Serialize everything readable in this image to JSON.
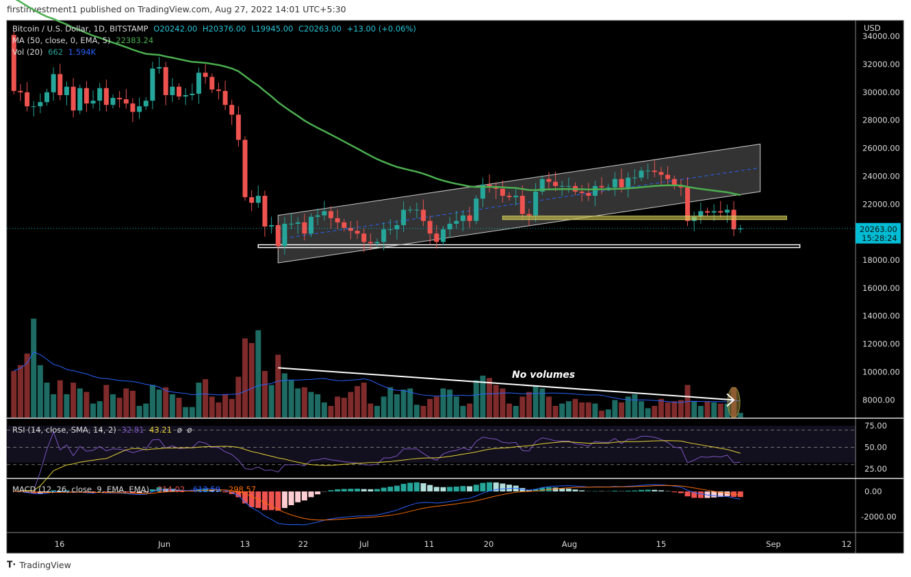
{
  "header": {
    "published": "firstinvestment1 published on TradingView.com, Aug 27, 2022 14:01 UTC+5:30"
  },
  "footer": {
    "brand": "TradingView"
  },
  "legend": {
    "symbol": "Bitcoin / U.S. Dollar, 1D, BITSTAMP",
    "open": "O20242.00",
    "high": "H20376.00",
    "low": "L19945.00",
    "close": "C20263.00",
    "change": "+13.00 (+0.06%)",
    "ma_label": "MA (50, close, 0, EMA, 5)",
    "ma_value": "22383.24",
    "vol_label": "Vol (20)",
    "vol_value": "662",
    "vol_ma_value": "1.594K",
    "rsi_label": "RSI (14, close, SMA, 14, 2)",
    "rsi_value": "32.81",
    "rsi_ma_value": "43.21",
    "rsi_extra1": "ø",
    "rsi_extra2": "ø",
    "macd_label": "MACD (12, 26, close, 9, EMA, EMA)",
    "macd_hist": "-314.02",
    "macd_value": "-612.59",
    "macd_signal": "-298.57"
  },
  "price_axis": {
    "currency": "USD",
    "ticks": [
      "34000.00",
      "32000.00",
      "30000.00",
      "28000.00",
      "26000.00",
      "24000.00",
      "22000.00",
      "18000.00",
      "16000.00",
      "14000.00",
      "12000.00",
      "10000.00",
      "8000.00"
    ],
    "last_price": "20263.00",
    "countdown": "15:28:24"
  },
  "rsi_axis": {
    "ticks": [
      "75.00",
      "50.00",
      "25.00"
    ]
  },
  "macd_axis": {
    "ticks": [
      "0.00",
      "-2000.00"
    ]
  },
  "time_axis": {
    "labels": [
      "16",
      "Jun",
      "13",
      "22",
      "Jul",
      "11",
      "20",
      "Aug",
      "15",
      "Sep",
      "12"
    ]
  },
  "annotation": {
    "text": "No volumes"
  },
  "colors": {
    "up": "#26a69a",
    "down": "#ef5350",
    "ma": "#4caf50",
    "rsi": "#7e57c2",
    "rsi_ma": "#e5d335",
    "macd": "#2962ff",
    "signal": "#ff6d00",
    "last": "#00bcd4"
  },
  "chart_data": {
    "type": "candlestick",
    "title": "Bitcoin / U.S. Dollar, 1D, BITSTAMP",
    "start_date": "2022-05-09",
    "first_open": 34100,
    "closes": [
      30100,
      30000,
      29000,
      29000,
      29300,
      30000,
      31300,
      29800,
      30400,
      28700,
      30300,
      29200,
      29400,
      30300,
      29100,
      29600,
      29500,
      29200,
      28600,
      29000,
      29400,
      31700,
      31800,
      29800,
      30400,
      29700,
      29800,
      29900,
      31400,
      31100,
      30200,
      30100,
      29100,
      28400,
      26600,
      22500,
      22100,
      22600,
      20400,
      20500,
      19000,
      20600,
      20600,
      20700,
      19900,
      21100,
      21200,
      21500,
      21000,
      20700,
      20300,
      20100,
      19900,
      19300,
      19200,
      19300,
      20200,
      20200,
      20500,
      21600,
      21600,
      21600,
      20800,
      19900,
      19300,
      20200,
      20600,
      20800,
      21200,
      20800,
      22400,
      23400,
      23200,
      23100,
      22600,
      22500,
      22600,
      21300,
      21200,
      22900,
      23800,
      23600,
      23300,
      23300,
      23300,
      22900,
      22800,
      22600,
      23300,
      23200,
      23200,
      23800,
      23200,
      23900,
      23900,
      24400,
      24400,
      24300,
      24100,
      23800,
      23300,
      23200,
      20800,
      21100,
      21500,
      21400,
      21500,
      21400,
      21600,
      20200,
      20263
    ],
    "volumes": [
      40,
      45,
      55,
      85,
      45,
      30,
      20,
      32,
      20,
      30,
      25,
      22,
      12,
      14,
      28,
      20,
      17,
      25,
      23,
      10,
      12,
      28,
      24,
      26,
      20,
      17,
      9,
      9,
      30,
      33,
      18,
      13,
      20,
      16,
      35,
      68,
      64,
      75,
      40,
      28,
      54,
      38,
      32,
      25,
      26,
      22,
      20,
      13,
      10,
      18,
      17,
      22,
      27,
      30,
      12,
      10,
      18,
      26,
      20,
      24,
      25,
      11,
      10,
      16,
      18,
      25,
      24,
      18,
      10,
      12,
      32,
      36,
      34,
      28,
      25,
      12,
      10,
      18,
      22,
      27,
      25,
      18,
      10,
      12,
      14,
      16,
      13,
      13,
      12,
      6,
      7,
      15,
      13,
      18,
      20,
      14,
      8,
      10,
      16,
      13,
      14,
      15,
      28,
      14,
      10,
      14,
      13,
      12,
      12,
      26,
      4
    ],
    "ma_seed": 37000,
    "channel": {
      "upper": [
        [
          40,
          21200
        ],
        [
          113,
          26300
        ]
      ],
      "lower": [
        [
          40,
          17800
        ],
        [
          113,
          22900
        ]
      ],
      "mid": [
        [
          40,
          19500
        ],
        [
          113,
          24600
        ]
      ]
    },
    "support_zone": {
      "from_day": 37,
      "to_day": 119,
      "low": 18900,
      "high": 19100
    },
    "resistance_zone": {
      "from_day": 74,
      "to_day": 117,
      "low": 20900,
      "high": 21150
    },
    "arrow": {
      "from": [
        40,
        10300
      ],
      "to": [
        109,
        8000
      ]
    },
    "ylim": [
      7000,
      35000
    ],
    "rsi_levels": [
      70,
      50,
      30
    ]
  }
}
